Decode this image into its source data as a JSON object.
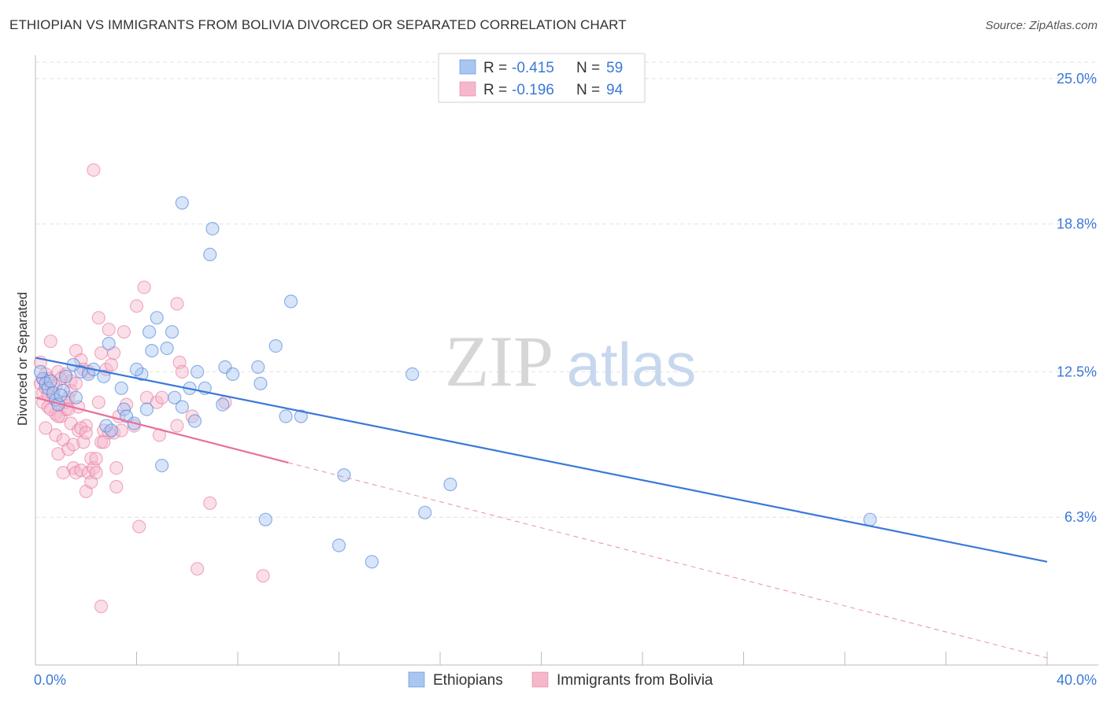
{
  "title": "ETHIOPIAN VS IMMIGRANTS FROM BOLIVIA DIVORCED OR SEPARATED CORRELATION CHART",
  "source": "Source: ZipAtlas.com",
  "watermark": {
    "zip": "ZIP",
    "atlas": "atlas"
  },
  "colors": {
    "blue": "#3b78d8",
    "blue_fill": "#a9c6f0",
    "pink": "#e8709a",
    "pink_fill": "#f5b8cb",
    "axis_label": "#3b78d8",
    "grid": "#dddddd"
  },
  "legend": {
    "rows": [
      {
        "r_label": "R = ",
        "r_value": "-0.415",
        "n_label": "N = ",
        "n_value": "59"
      },
      {
        "r_label": "R = ",
        "r_value": "-0.196",
        "n_label": "N = ",
        "n_value": "94"
      }
    ]
  },
  "bottom_legend": [
    "Ethiopians",
    "Immigrants from Bolivia"
  ],
  "chart_data": {
    "type": "scatter",
    "xlabel": "",
    "ylabel": "Divorced or Separated",
    "xlim": [
      0,
      40
    ],
    "ylim": [
      0,
      26
    ],
    "x_tick_labels": [
      {
        "value": 0,
        "label": "0.0%"
      },
      {
        "value": 40,
        "label": "40.0%"
      }
    ],
    "y_tick_labels": [
      {
        "value": 25.0,
        "label": "25.0%"
      },
      {
        "value": 18.8,
        "label": "18.8%"
      },
      {
        "value": 12.5,
        "label": "12.5%"
      },
      {
        "value": 6.3,
        "label": "6.3%"
      }
    ],
    "grid": true,
    "series": [
      {
        "name": "Ethiopians",
        "color": "#3b78d8",
        "trend": {
          "x": [
            0,
            40
          ],
          "y": [
            13.1,
            4.4
          ],
          "dashed_from": null
        },
        "points": [
          [
            0.3,
            12.2
          ],
          [
            0.4,
            12.0
          ],
          [
            0.5,
            11.8
          ],
          [
            0.7,
            11.6
          ],
          [
            0.8,
            11.3
          ],
          [
            0.9,
            11.1
          ],
          [
            1.1,
            11.7
          ],
          [
            1.5,
            12.8
          ],
          [
            1.8,
            12.5
          ],
          [
            2.1,
            12.4
          ],
          [
            2.3,
            12.6
          ],
          [
            2.7,
            12.3
          ],
          [
            2.9,
            13.7
          ],
          [
            3.4,
            11.8
          ],
          [
            3.5,
            10.9
          ],
          [
            3.6,
            10.6
          ],
          [
            3.9,
            10.3
          ],
          [
            4.2,
            12.4
          ],
          [
            4.5,
            14.2
          ],
          [
            4.6,
            13.4
          ],
          [
            4.8,
            14.8
          ],
          [
            5.0,
            8.5
          ],
          [
            5.2,
            13.5
          ],
          [
            5.4,
            14.2
          ],
          [
            5.5,
            11.4
          ],
          [
            5.8,
            11.0
          ],
          [
            5.8,
            19.7
          ],
          [
            6.1,
            11.8
          ],
          [
            6.3,
            10.4
          ],
          [
            6.4,
            12.5
          ],
          [
            6.7,
            11.8
          ],
          [
            6.9,
            17.5
          ],
          [
            7.0,
            18.6
          ],
          [
            7.4,
            11.1
          ],
          [
            7.5,
            12.7
          ],
          [
            7.8,
            12.4
          ],
          [
            8.8,
            12.7
          ],
          [
            8.9,
            12.0
          ],
          [
            9.1,
            6.2
          ],
          [
            9.5,
            13.6
          ],
          [
            9.9,
            10.6
          ],
          [
            10.1,
            15.5
          ],
          [
            10.5,
            10.6
          ],
          [
            12.0,
            5.1
          ],
          [
            12.2,
            8.1
          ],
          [
            13.3,
            4.4
          ],
          [
            14.9,
            12.4
          ],
          [
            15.4,
            6.5
          ],
          [
            16.4,
            7.7
          ],
          [
            33.0,
            6.2
          ],
          [
            0.2,
            12.5
          ],
          [
            1.2,
            12.3
          ],
          [
            1.0,
            11.5
          ],
          [
            2.8,
            10.2
          ],
          [
            3.0,
            10.0
          ],
          [
            4.0,
            12.6
          ],
          [
            4.4,
            10.9
          ],
          [
            1.6,
            11.4
          ],
          [
            0.6,
            12.1
          ]
        ]
      },
      {
        "name": "Immigrants from Bolivia",
        "color": "#e8709a",
        "trend": {
          "x": [
            0,
            40
          ],
          "y": [
            11.4,
            0.3
          ],
          "dashed_from": 10.0
        },
        "points": [
          [
            0.2,
            12.0
          ],
          [
            0.3,
            11.6
          ],
          [
            0.3,
            11.2
          ],
          [
            0.4,
            12.4
          ],
          [
            0.5,
            11.0
          ],
          [
            0.5,
            12.2
          ],
          [
            0.6,
            13.8
          ],
          [
            0.7,
            11.5
          ],
          [
            0.8,
            10.7
          ],
          [
            0.8,
            9.8
          ],
          [
            0.9,
            9.0
          ],
          [
            0.9,
            12.5
          ],
          [
            1.0,
            10.6
          ],
          [
            1.1,
            11.2
          ],
          [
            1.1,
            9.6
          ],
          [
            1.2,
            12.4
          ],
          [
            1.2,
            10.9
          ],
          [
            1.3,
            11.4
          ],
          [
            1.3,
            9.2
          ],
          [
            1.4,
            12.1
          ],
          [
            1.4,
            10.3
          ],
          [
            1.5,
            8.4
          ],
          [
            1.5,
            9.4
          ],
          [
            1.6,
            8.2
          ],
          [
            1.6,
            13.4
          ],
          [
            1.7,
            11.0
          ],
          [
            1.7,
            10.0
          ],
          [
            1.8,
            8.3
          ],
          [
            1.8,
            13.0
          ],
          [
            1.9,
            9.5
          ],
          [
            1.9,
            12.6
          ],
          [
            2.0,
            10.2
          ],
          [
            2.0,
            7.4
          ],
          [
            2.1,
            8.2
          ],
          [
            2.1,
            12.5
          ],
          [
            2.2,
            7.8
          ],
          [
            2.2,
            8.8
          ],
          [
            2.3,
            21.1
          ],
          [
            2.3,
            8.4
          ],
          [
            2.4,
            8.2
          ],
          [
            2.5,
            14.8
          ],
          [
            2.5,
            11.2
          ],
          [
            2.6,
            13.3
          ],
          [
            2.6,
            9.5
          ],
          [
            2.7,
            10.0
          ],
          [
            2.8,
            12.6
          ],
          [
            2.9,
            9.9
          ],
          [
            2.9,
            14.3
          ],
          [
            3.0,
            12.8
          ],
          [
            3.1,
            13.3
          ],
          [
            3.1,
            9.9
          ],
          [
            3.2,
            8.4
          ],
          [
            3.2,
            7.6
          ],
          [
            3.3,
            10.6
          ],
          [
            3.5,
            14.2
          ],
          [
            3.6,
            11.1
          ],
          [
            3.9,
            10.2
          ],
          [
            4.0,
            15.3
          ],
          [
            4.1,
            5.9
          ],
          [
            4.3,
            16.1
          ],
          [
            4.4,
            11.4
          ],
          [
            4.8,
            11.2
          ],
          [
            4.9,
            9.8
          ],
          [
            5.0,
            11.4
          ],
          [
            5.6,
            10.2
          ],
          [
            5.6,
            15.4
          ],
          [
            5.7,
            12.9
          ],
          [
            5.8,
            12.5
          ],
          [
            6.2,
            10.6
          ],
          [
            6.4,
            4.1
          ],
          [
            6.9,
            6.9
          ],
          [
            7.5,
            11.2
          ],
          [
            9.0,
            3.8
          ],
          [
            2.6,
            2.5
          ],
          [
            0.4,
            11.8
          ],
          [
            0.6,
            10.9
          ],
          [
            1.0,
            12.2
          ],
          [
            1.4,
            11.7
          ],
          [
            0.2,
            12.9
          ],
          [
            0.7,
            12.0
          ],
          [
            1.2,
            11.2
          ],
          [
            0.9,
            10.6
          ],
          [
            1.8,
            10.1
          ],
          [
            2.7,
            9.5
          ],
          [
            1.1,
            8.2
          ],
          [
            0.3,
            12.2
          ],
          [
            0.5,
            11.5
          ],
          [
            1.6,
            12.0
          ],
          [
            2.0,
            9.9
          ],
          [
            3.4,
            10.0
          ],
          [
            0.8,
            11.9
          ],
          [
            1.3,
            10.9
          ],
          [
            2.4,
            8.8
          ],
          [
            0.4,
            10.1
          ]
        ]
      }
    ]
  }
}
